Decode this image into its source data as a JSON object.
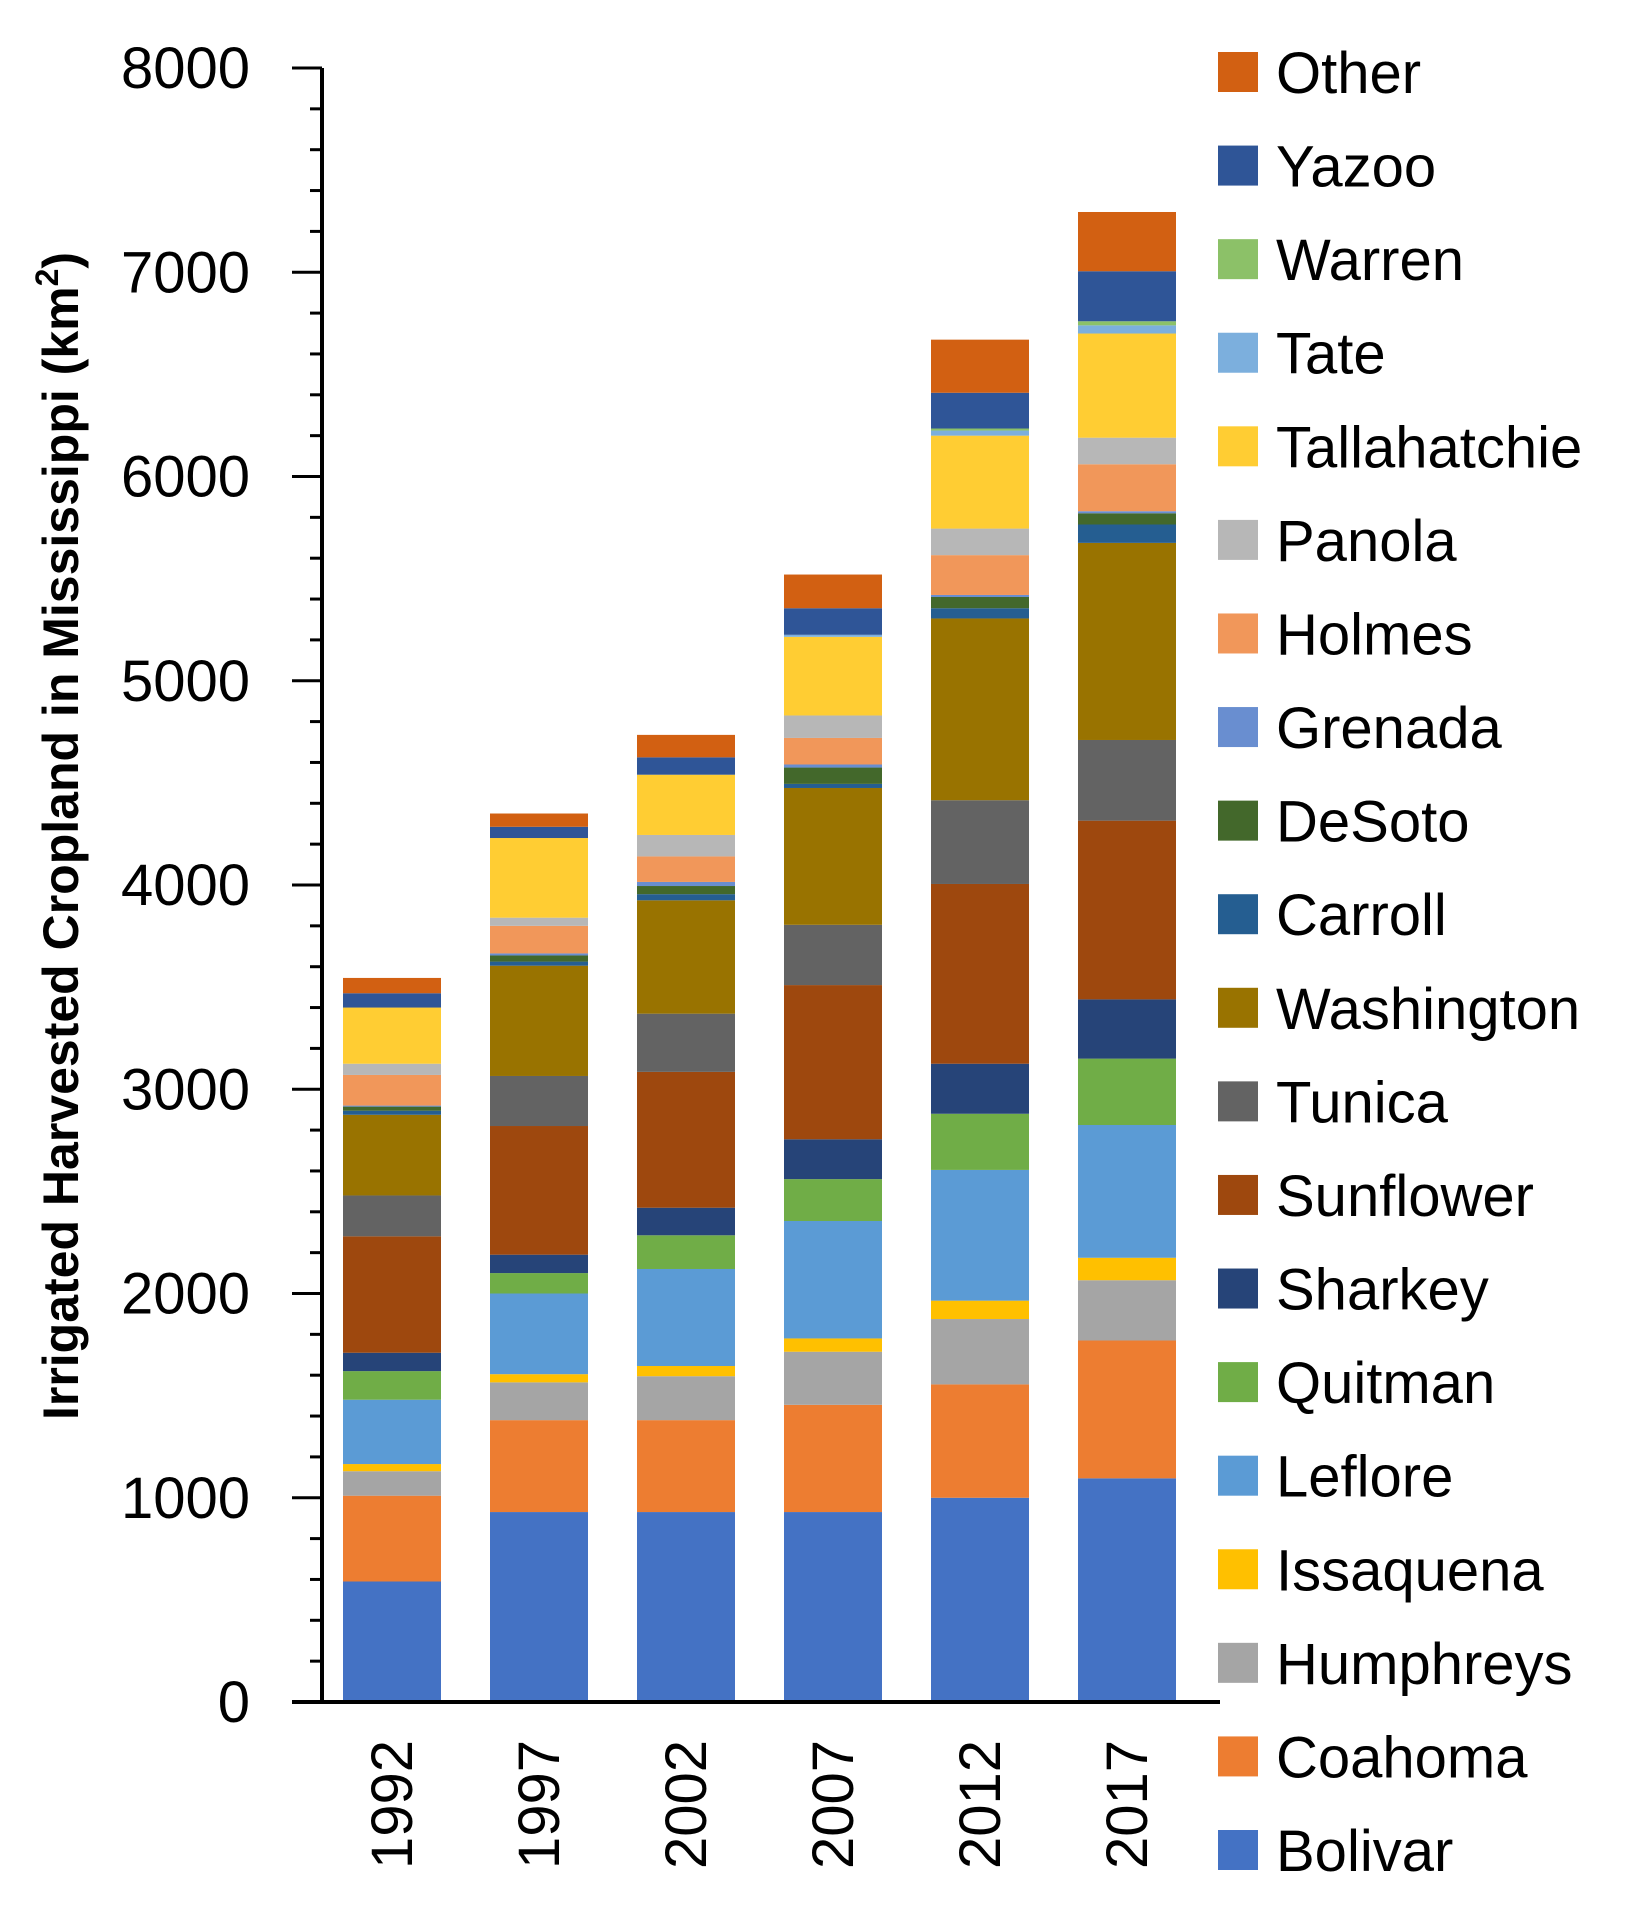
{
  "chart_data": {
    "type": "bar",
    "stacked": true,
    "title": "",
    "xlabel": "",
    "ylabel": "Irrigated Harvested Cropland in Mississippi (km",
    "ylabel_sup": "2",
    "ylabel_end": ")",
    "ylim": [
      0,
      8000
    ],
    "yticks": [
      0,
      1000,
      2000,
      3000,
      4000,
      5000,
      6000,
      7000,
      8000
    ],
    "grid": false,
    "legend_position": "right",
    "categories": [
      "1992",
      "1997",
      "2002",
      "2007",
      "2012",
      "2017"
    ],
    "series": [
      {
        "name": "Bolivar",
        "color": "#4472C4",
        "values": [
          590,
          930,
          930,
          930,
          1000,
          1095
        ]
      },
      {
        "name": "Coahoma",
        "color": "#ED7D31",
        "values": [
          420,
          450,
          450,
          525,
          555,
          675
        ]
      },
      {
        "name": "Humphreys",
        "color": "#A5A5A5",
        "values": [
          120,
          185,
          215,
          260,
          320,
          295
        ]
      },
      {
        "name": "Issaquena",
        "color": "#FFC000",
        "values": [
          35,
          40,
          50,
          65,
          90,
          110
        ]
      },
      {
        "name": "Leflore",
        "color": "#5B9BD5",
        "values": [
          315,
          395,
          475,
          575,
          640,
          650
        ]
      },
      {
        "name": "Quitman",
        "color": "#70AD47",
        "values": [
          140,
          100,
          165,
          205,
          275,
          325
        ]
      },
      {
        "name": "Sharkey",
        "color": "#264478",
        "values": [
          90,
          90,
          135,
          195,
          245,
          290
        ]
      },
      {
        "name": "Sunflower",
        "color": "#9E480E",
        "values": [
          570,
          630,
          665,
          755,
          880,
          875
        ]
      },
      {
        "name": "Tunica",
        "color": "#636363",
        "values": [
          200,
          245,
          285,
          295,
          410,
          395
        ]
      },
      {
        "name": "Washington",
        "color": "#997300",
        "values": [
          395,
          540,
          555,
          670,
          890,
          965
        ]
      },
      {
        "name": "Carroll",
        "color": "#255E91",
        "values": [
          20,
          20,
          30,
          20,
          50,
          90
        ]
      },
      {
        "name": "DeSoto",
        "color": "#43682B",
        "values": [
          20,
          30,
          40,
          80,
          55,
          55
        ]
      },
      {
        "name": "Grenada",
        "color": "#698ED0",
        "values": [
          5,
          10,
          20,
          15,
          10,
          10
        ]
      },
      {
        "name": "Holmes",
        "color": "#F1975A",
        "values": [
          150,
          135,
          125,
          130,
          195,
          230
        ]
      },
      {
        "name": "Panola",
        "color": "#B7B7B7",
        "values": [
          55,
          40,
          105,
          110,
          130,
          130
        ]
      },
      {
        "name": "Tallahatchie",
        "color": "#FFCD33",
        "values": [
          275,
          390,
          295,
          385,
          455,
          510
        ]
      },
      {
        "name": "Tate",
        "color": "#7CAFDD",
        "values": [
          0,
          0,
          0,
          10,
          25,
          40
        ]
      },
      {
        "name": "Warren",
        "color": "#8CC168",
        "values": [
          0,
          0,
          0,
          0,
          10,
          20
        ]
      },
      {
        "name": "Yazoo",
        "color": "#2F5597",
        "values": [
          70,
          55,
          85,
          130,
          175,
          245
        ]
      },
      {
        "name": "Other",
        "color": "#D26012",
        "values": [
          75,
          65,
          110,
          165,
          260,
          290
        ]
      }
    ]
  }
}
